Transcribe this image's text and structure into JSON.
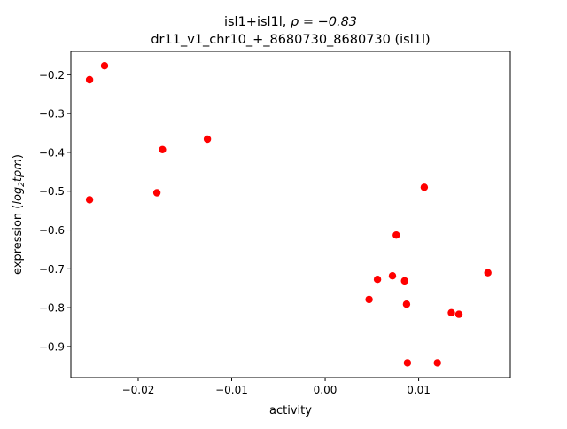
{
  "chart_data": {
    "type": "scatter",
    "title": {
      "line1_prefix": "isl1+isl1l, ",
      "line1_rho": "ρ = −0.83",
      "line2": "dr11_v1_chr10_+_8680730_8680730 (isl1l)"
    },
    "xlabel": "activity",
    "ylabel": {
      "prefix": "expression (",
      "log": "log",
      "sub": "2",
      "tpm": "tpm",
      "suffix": ")"
    },
    "xlim": [
      -0.0272,
      0.0198
    ],
    "ylim": [
      -0.98,
      -0.14
    ],
    "x_ticks": [
      {
        "value": -0.02,
        "label": "−0.02"
      },
      {
        "value": -0.01,
        "label": "−0.01"
      },
      {
        "value": 0.0,
        "label": "0.00"
      },
      {
        "value": 0.01,
        "label": "0.01"
      }
    ],
    "y_ticks": [
      {
        "value": -0.2,
        "label": "−0.2"
      },
      {
        "value": -0.3,
        "label": "−0.3"
      },
      {
        "value": -0.4,
        "label": "−0.4"
      },
      {
        "value": -0.5,
        "label": "−0.5"
      },
      {
        "value": -0.6,
        "label": "−0.6"
      },
      {
        "value": -0.7,
        "label": "−0.7"
      },
      {
        "value": -0.8,
        "label": "−0.8"
      },
      {
        "value": -0.9,
        "label": "−0.9"
      }
    ],
    "marker_color": "#ff0000",
    "grid": false,
    "points": [
      {
        "x": -0.0236,
        "y": -0.177
      },
      {
        "x": -0.0252,
        "y": -0.213
      },
      {
        "x": -0.0126,
        "y": -0.366
      },
      {
        "x": -0.0174,
        "y": -0.393
      },
      {
        "x": -0.018,
        "y": -0.504
      },
      {
        "x": -0.0252,
        "y": -0.522
      },
      {
        "x": 0.0106,
        "y": -0.49
      },
      {
        "x": 0.0076,
        "y": -0.613
      },
      {
        "x": 0.0174,
        "y": -0.71
      },
      {
        "x": 0.0072,
        "y": -0.718
      },
      {
        "x": 0.0056,
        "y": -0.727
      },
      {
        "x": 0.0085,
        "y": -0.731
      },
      {
        "x": 0.0047,
        "y": -0.779
      },
      {
        "x": 0.0087,
        "y": -0.791
      },
      {
        "x": 0.0135,
        "y": -0.813
      },
      {
        "x": 0.0143,
        "y": -0.817
      },
      {
        "x": 0.0088,
        "y": -0.942
      },
      {
        "x": 0.012,
        "y": -0.942
      }
    ]
  }
}
